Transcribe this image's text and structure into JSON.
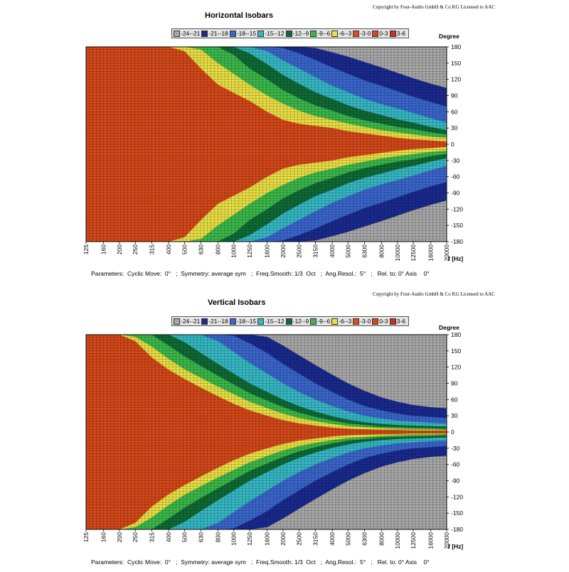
{
  "legend": [
    {
      "label": "-24--21",
      "color": "#a8a8a8"
    },
    {
      "label": "-21--18",
      "color": "#1a2a8e"
    },
    {
      "label": "-18--15",
      "color": "#3a66cc"
    },
    {
      "label": "-15--12",
      "color": "#36b8c4"
    },
    {
      "label": "-12--9",
      "color": "#0f6b36"
    },
    {
      "label": "-9--6",
      "color": "#3cb84a"
    },
    {
      "label": "-6--3",
      "color": "#eadf44"
    },
    {
      "label": "-3-0",
      "color": "#d9521c"
    },
    {
      "label": "0-3",
      "color": "#d4481a"
    },
    {
      "label": "3-6",
      "color": "#c83218"
    }
  ],
  "colors": {
    "grid": "#000000",
    "frame": "#000000"
  },
  "chart_data": [
    {
      "type": "heatmap",
      "title": "Horizontal Isobars",
      "copyright": "Copyright by Four-Audio GmbH & Co KG   Licensed to AAC",
      "xlabel": "f [Hz]",
      "ylabel": "Degree",
      "x_scale": "log",
      "x_ticks": [
        "125",
        "160",
        "200",
        "250",
        "315",
        "400",
        "500",
        "630",
        "800",
        "1000",
        "1250",
        "1600",
        "2000",
        "2500",
        "3150",
        "4000",
        "5000",
        "6300",
        "8000",
        "10000",
        "12500",
        "16000",
        "20000"
      ],
      "y_ticks": [
        "180",
        "150",
        "120",
        "90",
        "60",
        "30",
        "0",
        "-30",
        "-60",
        "-90",
        "-120",
        "-150",
        "-180"
      ],
      "ylim": [
        -180,
        180
      ],
      "xlim": [
        125,
        20000
      ],
      "grid": true,
      "parameters": "Parameters:  Cyclic Move:  0°   ;  Symmetry: average sym   ;  Freq.Smooth: 1/3  Oct   ;  Ang.Resol.:  5°   ;   Rel. to: 0° Axis    0°",
      "boundaries": [
        {
          "range": "-3-0",
          "color": "#eadf44",
          "points": [
            [
              125,
              180
            ],
            [
              400,
              180
            ],
            [
              500,
              172
            ],
            [
              630,
              140
            ],
            [
              800,
              110
            ],
            [
              1000,
              95
            ],
            [
              1250,
              80
            ],
            [
              1600,
              60
            ],
            [
              2000,
              45
            ],
            [
              2500,
              38
            ],
            [
              3150,
              34
            ],
            [
              4000,
              30
            ],
            [
              5000,
              24
            ],
            [
              6300,
              20
            ],
            [
              8000,
              16
            ],
            [
              10000,
              12
            ],
            [
              12500,
              9
            ],
            [
              16000,
              7
            ],
            [
              20000,
              5
            ]
          ]
        },
        {
          "range": "-6--3",
          "color": "#3cb84a",
          "points": [
            [
              500,
              180
            ],
            [
              630,
              175
            ],
            [
              800,
              150
            ],
            [
              1000,
              130
            ],
            [
              1250,
              110
            ],
            [
              1600,
              90
            ],
            [
              2000,
              75
            ],
            [
              2500,
              62
            ],
            [
              3150,
              52
            ],
            [
              4000,
              45
            ],
            [
              5000,
              38
            ],
            [
              6300,
              32
            ],
            [
              8000,
              26
            ],
            [
              10000,
              22
            ],
            [
              12500,
              18
            ],
            [
              16000,
              14
            ],
            [
              20000,
              12
            ]
          ]
        },
        {
          "range": "-9--6",
          "color": "#0f6b36",
          "points": [
            [
              800,
              180
            ],
            [
              1000,
              165
            ],
            [
              1250,
              140
            ],
            [
              1600,
              120
            ],
            [
              2000,
              100
            ],
            [
              2500,
              85
            ],
            [
              3150,
              72
            ],
            [
              4000,
              62
            ],
            [
              5000,
              52
            ],
            [
              6300,
              44
            ],
            [
              8000,
              38
            ],
            [
              10000,
              32
            ],
            [
              12500,
              28
            ],
            [
              16000,
              22
            ],
            [
              20000,
              18
            ]
          ]
        },
        {
          "range": "-12--9",
          "color": "#36b8c4",
          "points": [
            [
              1000,
              180
            ],
            [
              1250,
              168
            ],
            [
              1600,
              148
            ],
            [
              2000,
              128
            ],
            [
              2500,
              112
            ],
            [
              3150,
              96
            ],
            [
              4000,
              84
            ],
            [
              5000,
              72
            ],
            [
              6300,
              62
            ],
            [
              8000,
              54
            ],
            [
              10000,
              46
            ],
            [
              12500,
              40
            ],
            [
              16000,
              32
            ],
            [
              20000,
              26
            ]
          ]
        },
        {
          "range": "-15--12",
          "color": "#3a66cc",
          "points": [
            [
              1250,
              180
            ],
            [
              1600,
              172
            ],
            [
              2000,
              155
            ],
            [
              2500,
              140
            ],
            [
              3150,
              124
            ],
            [
              4000,
              108
            ],
            [
              5000,
              96
            ],
            [
              6300,
              84
            ],
            [
              8000,
              74
            ],
            [
              10000,
              66
            ],
            [
              12500,
              58
            ],
            [
              16000,
              48
            ],
            [
              20000,
              40
            ]
          ]
        },
        {
          "range": "-18--15",
          "color": "#1a2a8e",
          "points": [
            [
              1600,
              180
            ],
            [
              2000,
              178
            ],
            [
              2500,
              168
            ],
            [
              3150,
              156
            ],
            [
              4000,
              142
            ],
            [
              5000,
              130
            ],
            [
              6300,
              118
            ],
            [
              8000,
              108
            ],
            [
              10000,
              98
            ],
            [
              12500,
              88
            ],
            [
              16000,
              78
            ],
            [
              20000,
              70
            ]
          ]
        },
        {
          "range": "-21--18",
          "color": "#a8a8a8",
          "points": [
            [
              2500,
              180
            ],
            [
              3150,
              178
            ],
            [
              4000,
              170
            ],
            [
              5000,
              162
            ],
            [
              6300,
              152
            ],
            [
              8000,
              142
            ],
            [
              10000,
              132
            ],
            [
              12500,
              122
            ],
            [
              16000,
              112
            ],
            [
              20000,
              104
            ]
          ]
        }
      ]
    },
    {
      "type": "heatmap",
      "title": "Vertical Isobars",
      "copyright": "Copyright by Four-Audio GmbH & Co KG   Licensed to AAC",
      "xlabel": "f [Hz]",
      "ylabel": "Degree",
      "x_scale": "log",
      "x_ticks": [
        "125",
        "160",
        "200",
        "250",
        "315",
        "400",
        "500",
        "630",
        "800",
        "1000",
        "1250",
        "1600",
        "2000",
        "2500",
        "3150",
        "4000",
        "5000",
        "6300",
        "8000",
        "10000",
        "12500",
        "16000",
        "20000"
      ],
      "y_ticks": [
        "180",
        "150",
        "120",
        "90",
        "60",
        "30",
        "0",
        "-30",
        "-60",
        "-90",
        "-120",
        "-150",
        "-180"
      ],
      "ylim": [
        -180,
        180
      ],
      "xlim": [
        125,
        20000
      ],
      "grid": true,
      "parameters": "Parameters:  Cyclic Move:  0°   ;  Symmetry: average sym   ;  Freq.Smooth: 1/3  Oct   ;  Ang.Resol.:  5°   ;   Rel. to: 0° Axis    0°",
      "boundaries": [
        {
          "range": "-3-0",
          "color": "#eadf44",
          "points": [
            [
              125,
              180
            ],
            [
              200,
              180
            ],
            [
              250,
              168
            ],
            [
              315,
              138
            ],
            [
              400,
              115
            ],
            [
              500,
              98
            ],
            [
              630,
              82
            ],
            [
              800,
              66
            ],
            [
              1000,
              52
            ],
            [
              1250,
              40
            ],
            [
              1600,
              30
            ],
            [
              2000,
              22
            ],
            [
              2500,
              16
            ],
            [
              3150,
              12
            ],
            [
              4000,
              8
            ],
            [
              5000,
              6
            ],
            [
              6300,
              5
            ],
            [
              8000,
              4
            ],
            [
              10000,
              4
            ],
            [
              12500,
              3
            ],
            [
              16000,
              3
            ],
            [
              20000,
              3
            ]
          ]
        },
        {
          "range": "-6--3",
          "color": "#3cb84a",
          "points": [
            [
              200,
              180
            ],
            [
              250,
              176
            ],
            [
              315,
              158
            ],
            [
              400,
              135
            ],
            [
              500,
              116
            ],
            [
              630,
              100
            ],
            [
              800,
              84
            ],
            [
              1000,
              70
            ],
            [
              1250,
              56
            ],
            [
              1600,
              44
            ],
            [
              2000,
              34
            ],
            [
              2500,
              26
            ],
            [
              3150,
              20
            ],
            [
              4000,
              15
            ],
            [
              5000,
              11
            ],
            [
              6300,
              9
            ],
            [
              8000,
              7
            ],
            [
              10000,
              6
            ],
            [
              12500,
              5
            ],
            [
              16000,
              5
            ],
            [
              20000,
              4
            ]
          ]
        },
        {
          "range": "-9--6",
          "color": "#0f6b36",
          "points": [
            [
              315,
              180
            ],
            [
              400,
              160
            ],
            [
              500,
              140
            ],
            [
              630,
              122
            ],
            [
              800,
              104
            ],
            [
              1000,
              88
            ],
            [
              1250,
              72
            ],
            [
              1600,
              58
            ],
            [
              2000,
              46
            ],
            [
              2500,
              36
            ],
            [
              3150,
              28
            ],
            [
              4000,
              21
            ],
            [
              5000,
              16
            ],
            [
              6300,
              13
            ],
            [
              8000,
              10
            ],
            [
              10000,
              9
            ],
            [
              12500,
              8
            ],
            [
              16000,
              7
            ],
            [
              20000,
              6
            ]
          ]
        },
        {
          "range": "-12--9",
          "color": "#36b8c4",
          "points": [
            [
              400,
              180
            ],
            [
              500,
              166
            ],
            [
              630,
              146
            ],
            [
              800,
              126
            ],
            [
              1000,
              108
            ],
            [
              1250,
              90
            ],
            [
              1600,
              74
            ],
            [
              2000,
              60
            ],
            [
              2500,
              48
            ],
            [
              3150,
              38
            ],
            [
              4000,
              29
            ],
            [
              5000,
              23
            ],
            [
              6300,
              18
            ],
            [
              8000,
              15
            ],
            [
              10000,
              13
            ],
            [
              12500,
              12
            ],
            [
              16000,
              11
            ],
            [
              20000,
              10
            ]
          ]
        },
        {
          "range": "-15--12",
          "color": "#3a66cc",
          "points": [
            [
              630,
              180
            ],
            [
              800,
              168
            ],
            [
              1000,
              148
            ],
            [
              1250,
              128
            ],
            [
              1600,
              108
            ],
            [
              2000,
              90
            ],
            [
              2500,
              74
            ],
            [
              3150,
              60
            ],
            [
              4000,
              48
            ],
            [
              5000,
              38
            ],
            [
              6300,
              30
            ],
            [
              8000,
              25
            ],
            [
              10000,
              21
            ],
            [
              12500,
              19
            ],
            [
              16000,
              17
            ],
            [
              20000,
              16
            ]
          ]
        },
        {
          "range": "-18--15",
          "color": "#1a2a8e",
          "points": [
            [
              800,
              180
            ],
            [
              1000,
              178
            ],
            [
              1250,
              164
            ],
            [
              1600,
              146
            ],
            [
              2000,
              126
            ],
            [
              2500,
              108
            ],
            [
              3150,
              90
            ],
            [
              4000,
              74
            ],
            [
              5000,
              60
            ],
            [
              6300,
              48
            ],
            [
              8000,
              40
            ],
            [
              10000,
              34
            ],
            [
              12500,
              30
            ],
            [
              16000,
              28
            ],
            [
              20000,
              26
            ]
          ]
        },
        {
          "range": "-21--18",
          "color": "#a8a8a8",
          "points": [
            [
              1000,
              180
            ],
            [
              1250,
              180
            ],
            [
              1600,
              176
            ],
            [
              2000,
              160
            ],
            [
              2500,
              142
            ],
            [
              3150,
              124
            ],
            [
              4000,
              106
            ],
            [
              5000,
              90
            ],
            [
              6300,
              76
            ],
            [
              8000,
              64
            ],
            [
              10000,
              56
            ],
            [
              12500,
              50
            ],
            [
              16000,
              46
            ],
            [
              20000,
              44
            ]
          ]
        }
      ]
    }
  ]
}
